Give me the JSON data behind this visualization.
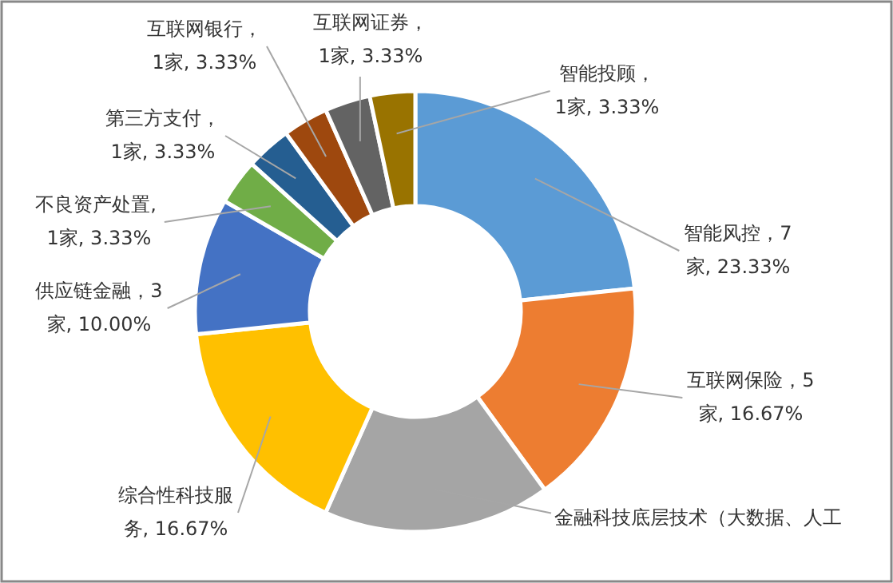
{
  "chart_data": {
    "type": "donut",
    "categories": [
      "智能风控",
      "互联网保险",
      "金融科技底层技术（大数据、人工",
      "综合性科技服务",
      "供应链金融",
      "不良资产处置",
      "第三方支付",
      "互联网银行",
      "互联网证券",
      "智能投顾"
    ],
    "values": [
      23.33,
      16.67,
      16.67,
      16.67,
      10.0,
      3.33,
      3.33,
      3.33,
      3.33,
      3.33
    ],
    "colors": [
      "#5b9bd5",
      "#ed7d31",
      "#a5a5a5",
      "#ffc000",
      "#4472c4",
      "#70ad47",
      "#255e91",
      "#9e480e",
      "#636363",
      "#997300"
    ],
    "value_labels": [
      "，7家, 23.33%",
      "，5家, 16.67%",
      null,
      ", 16.67%",
      "，3家, 10.00%",
      ", 1家, 3.33%",
      "，1家, 3.33%",
      "，1家, 3.33%",
      "，1家, 3.33%",
      "，1家, 3.33%"
    ]
  }
}
